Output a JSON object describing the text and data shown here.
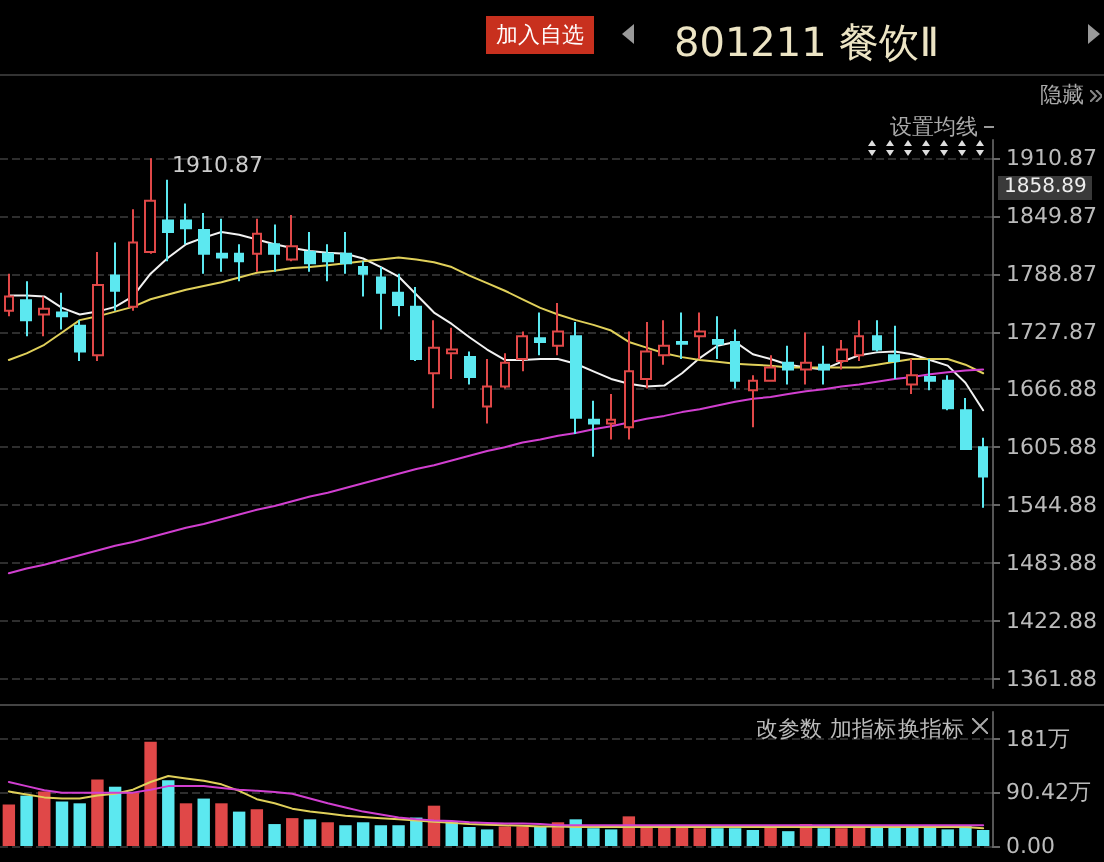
{
  "chart_data": [
    {
      "type": "candlestick",
      "title": "801211 餐饮Ⅱ",
      "categories": [
        null,
        null,
        null,
        null,
        null,
        null,
        null,
        null,
        null,
        null,
        null,
        null,
        null,
        null,
        null,
        null,
        null,
        null,
        null,
        null,
        null,
        null,
        null,
        null,
        null,
        null,
        null,
        null,
        null,
        null,
        null,
        null,
        null,
        null,
        null,
        null,
        null,
        null,
        null,
        null,
        null,
        null,
        null,
        null,
        null,
        null,
        null,
        null,
        null,
        null,
        null,
        null,
        null,
        null,
        null,
        null
      ],
      "ohlc": [
        [
          1750,
          1789,
          1744,
          1765
        ],
        [
          1761,
          1781,
          1723,
          1740
        ],
        [
          1746,
          1765,
          1723,
          1752
        ],
        [
          1748,
          1769,
          1730,
          1744
        ],
        [
          1734,
          1740,
          1697,
          1707
        ],
        [
          1703,
          1812,
          1697,
          1777
        ],
        [
          1787,
          1822,
          1750,
          1771
        ],
        [
          1754,
          1857,
          1750,
          1822
        ],
        [
          1812,
          1910.87,
          1810,
          1866
        ],
        [
          1845,
          1888,
          1802,
          1833
        ],
        [
          1845,
          1863,
          1820,
          1837
        ],
        [
          1835,
          1853,
          1789,
          1810
        ],
        [
          1810,
          1847,
          1791,
          1806
        ],
        [
          1810,
          1820,
          1781,
          1802
        ],
        [
          1810,
          1847,
          1791,
          1831
        ],
        [
          1820,
          1841,
          1791,
          1810
        ],
        [
          1804,
          1851,
          1802,
          1818
        ],
        [
          1812,
          1833,
          1791,
          1800
        ],
        [
          1810,
          1820,
          1781,
          1802
        ],
        [
          1810,
          1833,
          1789,
          1800
        ],
        [
          1796,
          1802,
          1765,
          1789
        ],
        [
          1785,
          1796,
          1730,
          1769
        ],
        [
          1769,
          1789,
          1744,
          1756
        ],
        [
          1754,
          1775,
          1697,
          1699
        ],
        [
          1684,
          1740,
          1647,
          1711
        ],
        [
          1705,
          1732,
          1678,
          1709
        ],
        [
          1701,
          1707,
          1672,
          1680
        ],
        [
          1649,
          1699,
          1631,
          1670
        ],
        [
          1670,
          1705,
          1668,
          1695
        ],
        [
          1699,
          1728,
          1686,
          1723
        ],
        [
          1721,
          1748,
          1703,
          1717
        ],
        [
          1713,
          1758,
          1703,
          1728
        ],
        [
          1723,
          1738,
          1620,
          1637
        ],
        [
          1635,
          1655,
          1596,
          1631
        ],
        [
          1631,
          1662,
          1614,
          1635
        ],
        [
          1627,
          1728,
          1614,
          1686
        ],
        [
          1678,
          1738,
          1668,
          1707
        ],
        [
          1703,
          1740,
          1693,
          1713
        ],
        [
          1717,
          1748,
          1699,
          1715
        ],
        [
          1723,
          1748,
          1699,
          1728
        ],
        [
          1719,
          1744,
          1699,
          1715
        ],
        [
          1717,
          1730,
          1668,
          1676
        ],
        [
          1666,
          1682,
          1627,
          1676
        ],
        [
          1676,
          1703,
          1676,
          1690
        ],
        [
          1695,
          1713,
          1672,
          1688
        ],
        [
          1688,
          1727,
          1672,
          1695
        ],
        [
          1693,
          1713,
          1672,
          1688
        ],
        [
          1697,
          1719,
          1688,
          1709
        ],
        [
          1703,
          1740,
          1697,
          1723
        ],
        [
          1723,
          1740,
          1707,
          1709
        ],
        [
          1703,
          1734,
          1678,
          1697
        ],
        [
          1672,
          1699,
          1662,
          1682
        ],
        [
          1680,
          1699,
          1666,
          1676
        ],
        [
          1676,
          1682,
          1645,
          1647
        ],
        [
          1645,
          1658,
          1604,
          1604
        ],
        [
          1606,
          1616,
          1542,
          1575
        ]
      ],
      "series": [
        {
          "type": "line",
          "color": "#f2f2f2",
          "values": [
            1766,
            1766,
            1765,
            1753,
            1746,
            1749,
            1754,
            1765,
            1789,
            1806,
            1820,
            1827,
            1833,
            1830,
            1825,
            1820,
            1816,
            1813,
            1811,
            1810,
            1805,
            1796,
            1786,
            1767,
            1748,
            1736,
            1722,
            1709,
            1698,
            1698,
            1699,
            1699,
            1694,
            1686,
            1678,
            1673,
            1670,
            1671,
            1684,
            1700,
            1713,
            1717,
            1704,
            1699,
            1693,
            1690,
            1688,
            1696,
            1703,
            1706,
            1707,
            1704,
            1698,
            1692,
            1674,
            1645
          ]
        },
        {
          "type": "line",
          "color": "#e0d05a",
          "values": [
            1698,
            1705,
            1714,
            1727,
            1740,
            1744,
            1749,
            1754,
            1762,
            1767,
            1772,
            1776,
            1780,
            1785,
            1790,
            1792,
            1795,
            1796,
            1798,
            1800,
            1802,
            1804,
            1806,
            1804,
            1801,
            1796,
            1787,
            1779,
            1771,
            1762,
            1753,
            1746,
            1740,
            1735,
            1729,
            1717,
            1711,
            1705,
            1701,
            1698,
            1696,
            1694,
            1693,
            1692,
            1690,
            1690,
            1690,
            1690,
            1690,
            1693,
            1696,
            1699,
            1699,
            1699,
            1693,
            1684
          ]
        },
        {
          "type": "line",
          "color": "#d13fd0",
          "values": [
            1473,
            1478,
            1482,
            1487,
            1492,
            1497,
            1502,
            1506,
            1511,
            1516,
            1521,
            1525,
            1530,
            1535,
            1540,
            1544,
            1549,
            1554,
            1558,
            1563,
            1568,
            1573,
            1578,
            1583,
            1587,
            1592,
            1597,
            1602,
            1606,
            1611,
            1614,
            1618,
            1621,
            1625,
            1628,
            1632,
            1636,
            1639,
            1643,
            1646,
            1650,
            1654,
            1657,
            1659,
            1662,
            1665,
            1667,
            1670,
            1672,
            1675,
            1678,
            1680,
            1683,
            1685,
            1687,
            1688
          ]
        }
      ],
      "ylim": [
        1352,
        1930
      ],
      "yticks": [
        1361.88,
        1422.88,
        1483.88,
        1544.88,
        1605.88,
        1666.88,
        1727.87,
        1788.87,
        1849.87,
        1910.87
      ],
      "grid": "y",
      "marker": "none",
      "annotations": [
        "1910.87",
        "1858.89",
        "加入自选",
        "隐藏",
        "设置均线"
      ]
    },
    {
      "type": "bar",
      "categories": [
        null,
        null,
        null,
        null,
        null,
        null,
        null,
        null,
        null,
        null,
        null,
        null,
        null,
        null,
        null,
        null,
        null,
        null,
        null,
        null,
        null,
        null,
        null,
        null,
        null,
        null,
        null,
        null,
        null,
        null,
        null,
        null,
        null,
        null,
        null,
        null,
        null,
        null,
        null,
        null,
        null,
        null,
        null,
        null,
        null,
        null,
        null,
        null,
        null,
        null,
        null,
        null,
        null,
        null,
        null,
        null
      ],
      "series": [
        {
          "type": "bar",
          "colors": [
            "#e04848",
            "#5ce8f0",
            "#e04848",
            "#5ce8f0",
            "#5ce8f0",
            "#e04848",
            "#5ce8f0",
            "#e04848",
            "#e04848",
            "#5ce8f0",
            "#e04848",
            "#5ce8f0",
            "#e04848",
            "#5ce8f0",
            "#e04848",
            "#5ce8f0",
            "#e04848",
            "#5ce8f0",
            "#e04848",
            "#5ce8f0",
            "#5ce8f0",
            "#5ce8f0",
            "#5ce8f0",
            "#5ce8f0",
            "#e04848",
            "#5ce8f0",
            "#5ce8f0",
            "#5ce8f0",
            "#e04848",
            "#e04848",
            "#5ce8f0",
            "#e04848",
            "#5ce8f0",
            "#5ce8f0",
            "#5ce8f0",
            "#e04848",
            "#e04848",
            "#e04848",
            "#e04848",
            "#e04848",
            "#5ce8f0",
            "#5ce8f0",
            "#5ce8f0",
            "#e04848",
            "#5ce8f0",
            "#e04848",
            "#5ce8f0",
            "#e04848",
            "#e04848",
            "#5ce8f0",
            "#5ce8f0",
            "#5ce8f0",
            "#5ce8f0",
            "#5ce8f0",
            "#5ce8f0",
            "#5ce8f0"
          ],
          "values": [
            70,
            85,
            92,
            75,
            72,
            112,
            100,
            90,
            176,
            111,
            72,
            80,
            72,
            58,
            62,
            37,
            47,
            45,
            40,
            35,
            40,
            35,
            35,
            48,
            68,
            42,
            32,
            28,
            33,
            33,
            33,
            40,
            45,
            30,
            28,
            50,
            32,
            32,
            32,
            30,
            30,
            30,
            27,
            32,
            25,
            37,
            30,
            30,
            35,
            35,
            35,
            35,
            35,
            28,
            35,
            27
          ]
        },
        {
          "type": "line",
          "color": "#e0d05a",
          "values": [
            92,
            87,
            82,
            80,
            80,
            85,
            88,
            95,
            108,
            118,
            114,
            110,
            104,
            93,
            79,
            72,
            63,
            58,
            55,
            51,
            49,
            47,
            45,
            43,
            41,
            39,
            37,
            36,
            35,
            34,
            33,
            33,
            32,
            32,
            32,
            32,
            32,
            32,
            32,
            32,
            32,
            32,
            32,
            32,
            32,
            32,
            32,
            32,
            32,
            32,
            32,
            32,
            32,
            32,
            32,
            30
          ]
        },
        {
          "type": "line",
          "color": "#d13fd0",
          "values": [
            108,
            101,
            94,
            90,
            90,
            90,
            90,
            90,
            95,
            101,
            101,
            101,
            98,
            95,
            93,
            91,
            88,
            80,
            72,
            65,
            58,
            53,
            48,
            45,
            43,
            42,
            40,
            39,
            38,
            38,
            37,
            35,
            35,
            35,
            35,
            35,
            35,
            35,
            35,
            35,
            35,
            35,
            35,
            35,
            35,
            35,
            35,
            35,
            35,
            35,
            35,
            35,
            35,
            35,
            35,
            35
          ]
        }
      ],
      "ylim": [
        0,
        226
      ],
      "yticks": [
        {
          "value": 0,
          "label": "0.00"
        },
        {
          "value": 90.42,
          "label": "90.42万"
        },
        {
          "value": 181,
          "label": "181万"
        }
      ],
      "grid": "y",
      "marker": "none",
      "annotations": [
        "改参数",
        "加指标",
        "换指标"
      ]
    }
  ]
}
